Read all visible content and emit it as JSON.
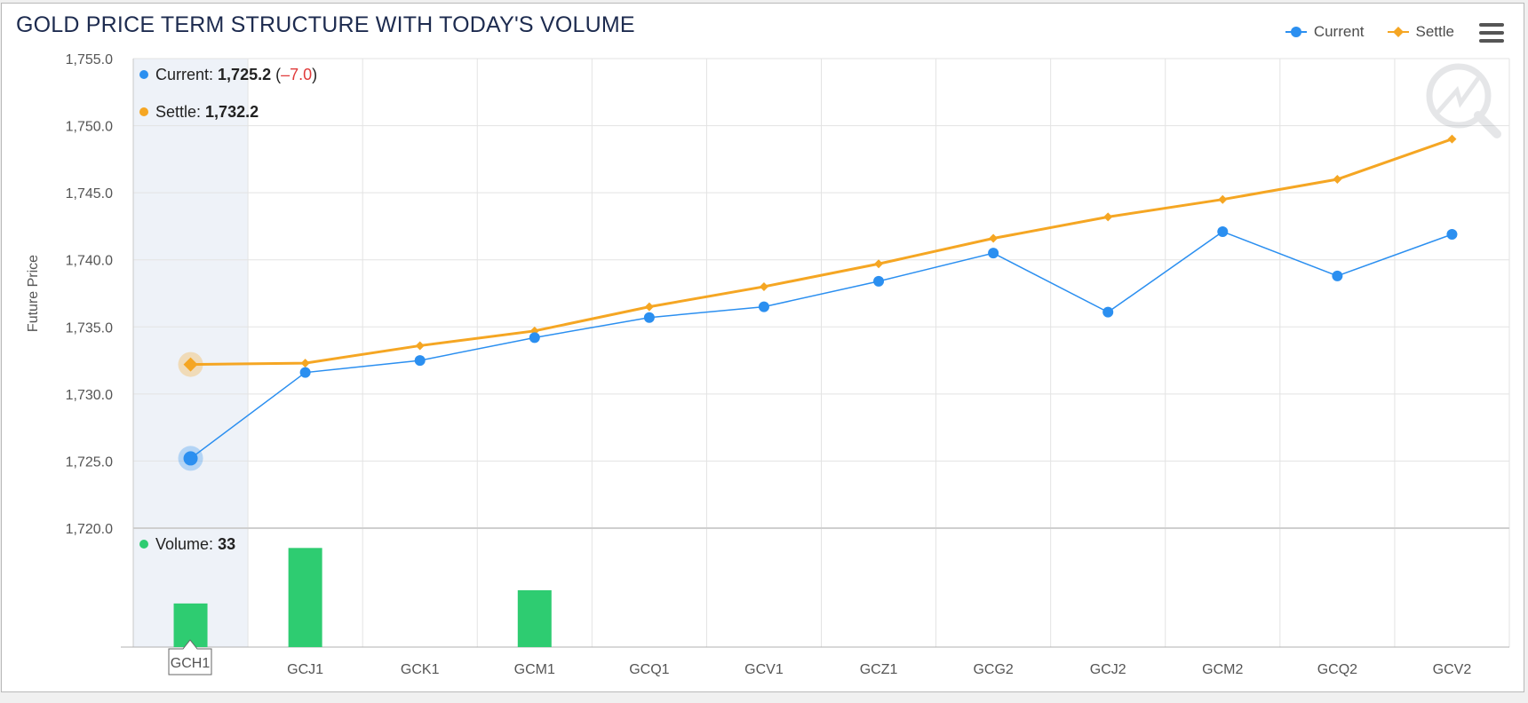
{
  "title": "GOLD PRICE TERM STRUCTURE WITH TODAY'S VOLUME",
  "menu_icon": "hamburger-icon",
  "watermark_icon": "logo-watermark-icon",
  "legend": [
    {
      "name": "Current",
      "marker": "circle",
      "color": "#2b8ff0"
    },
    {
      "name": "Settle",
      "marker": "diamond",
      "color": "#f5a623"
    }
  ],
  "tooltip": {
    "category": "GCH1",
    "current_label": "Current:",
    "current_value": "1,725.2",
    "current_change": "–7.0",
    "settle_label": "Settle:",
    "settle_value": "1,732.2",
    "volume_label": "Volume:",
    "volume_value": "33"
  },
  "colors": {
    "current": "#2b8ff0",
    "settle": "#f5a623",
    "volume": "#2ecc71",
    "negative": "#e03b3b",
    "highlight": "#eef2f8",
    "grid": "#e3e3e3"
  },
  "chart_data": {
    "type": "line",
    "title": "GOLD PRICE TERM STRUCTURE WITH TODAY'S VOLUME",
    "xlabel": "",
    "ylabel": "Future Price",
    "categories": [
      "GCH1",
      "GCJ1",
      "GCK1",
      "GCM1",
      "GCQ1",
      "GCV1",
      "GCZ1",
      "GCG2",
      "GCJ2",
      "GCM2",
      "GCQ2",
      "GCV2"
    ],
    "ylim": [
      1720,
      1755
    ],
    "yticks": [
      1755,
      1750,
      1745,
      1740,
      1735,
      1730,
      1725,
      1720
    ],
    "ytick_labels": [
      "1,755.0",
      "1,750.0",
      "1,745.0",
      "1,740.0",
      "1,735.0",
      "1,730.0",
      "1,725.0",
      "1,720.0"
    ],
    "grid": true,
    "legend_position": "top-right",
    "series": [
      {
        "name": "Current",
        "values": [
          1725.2,
          1731.6,
          1732.5,
          1734.2,
          1735.7,
          1736.5,
          1738.4,
          1740.5,
          1736.1,
          1742.1,
          1738.8,
          1741.9
        ]
      },
      {
        "name": "Settle",
        "values": [
          1732.2,
          1732.3,
          1733.6,
          1734.7,
          1736.5,
          1738.0,
          1739.7,
          1741.6,
          1743.2,
          1744.5,
          1746.0,
          1749.0
        ]
      }
    ],
    "volume": {
      "name": "Volume",
      "values": [
        33,
        75,
        0,
        43,
        0,
        0,
        0,
        0,
        0,
        0,
        0,
        0
      ],
      "ylim": [
        0,
        90
      ]
    },
    "highlighted_category": "GCH1"
  }
}
